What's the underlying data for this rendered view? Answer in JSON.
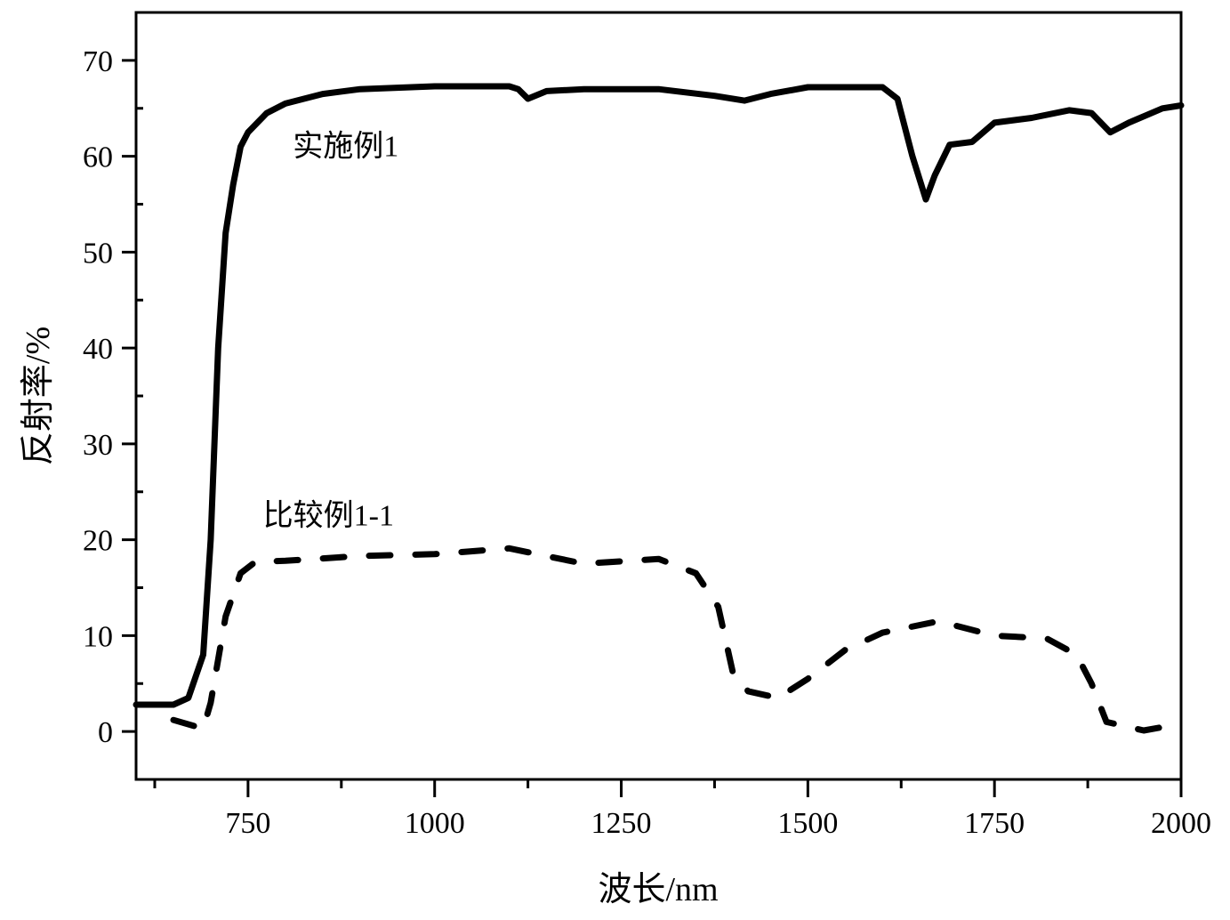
{
  "chart_data": {
    "type": "line",
    "title": "",
    "xlabel": "波长/nm",
    "ylabel": "反射率/%",
    "xlim": [
      600,
      2000
    ],
    "ylim": [
      -5,
      75
    ],
    "xticks": [
      750,
      1000,
      1250,
      1500,
      1750,
      2000
    ],
    "yticks": [
      0,
      10,
      20,
      30,
      40,
      50,
      60,
      70
    ],
    "grid": false,
    "series": [
      {
        "name": "实施例1",
        "style": "solid",
        "color": "#000000",
        "x": [
          600,
          650,
          670,
          690,
          700,
          710,
          720,
          730,
          740,
          750,
          775,
          800,
          825,
          850,
          900,
          1000,
          1100,
          1112,
          1125,
          1150,
          1200,
          1300,
          1375,
          1415,
          1450,
          1500,
          1600,
          1620,
          1640,
          1658,
          1670,
          1690,
          1720,
          1750,
          1800,
          1850,
          1880,
          1905,
          1930,
          1975,
          2000
        ],
        "y": [
          2.8,
          2.8,
          3.5,
          8,
          20,
          40,
          52,
          57,
          61,
          62.5,
          64.5,
          65.5,
          66,
          66.5,
          67,
          67.3,
          67.3,
          67,
          66,
          66.8,
          67,
          67,
          66.3,
          65.8,
          66.5,
          67.2,
          67.2,
          66,
          60,
          55.5,
          58,
          61.2,
          61.5,
          63.5,
          64,
          64.8,
          64.5,
          62.5,
          63.5,
          65,
          65.3
        ]
      },
      {
        "name": "比较例1-1",
        "style": "dashed",
        "color": "#000000",
        "x": [
          650,
          690,
          700,
          720,
          740,
          760,
          800,
          900,
          1000,
          1100,
          1200,
          1300,
          1350,
          1380,
          1400,
          1420,
          1460,
          1500,
          1550,
          1600,
          1675,
          1750,
          1820,
          1860,
          1880,
          1900,
          1950,
          2000
        ],
        "y": [
          1.2,
          0.3,
          3,
          12,
          16.5,
          17.7,
          17.8,
          18.3,
          18.5,
          19.1,
          17.5,
          18,
          16.5,
          13,
          6,
          4.2,
          3.5,
          5.5,
          8.5,
          10.3,
          11.5,
          10,
          9.7,
          8,
          5,
          1,
          0.1,
          0.8
        ]
      }
    ],
    "annotations": [
      {
        "text": "实施例1",
        "x": 810,
        "y": 60
      },
      {
        "text": "比较例1-1",
        "x": 770,
        "y": 21.5
      }
    ]
  }
}
